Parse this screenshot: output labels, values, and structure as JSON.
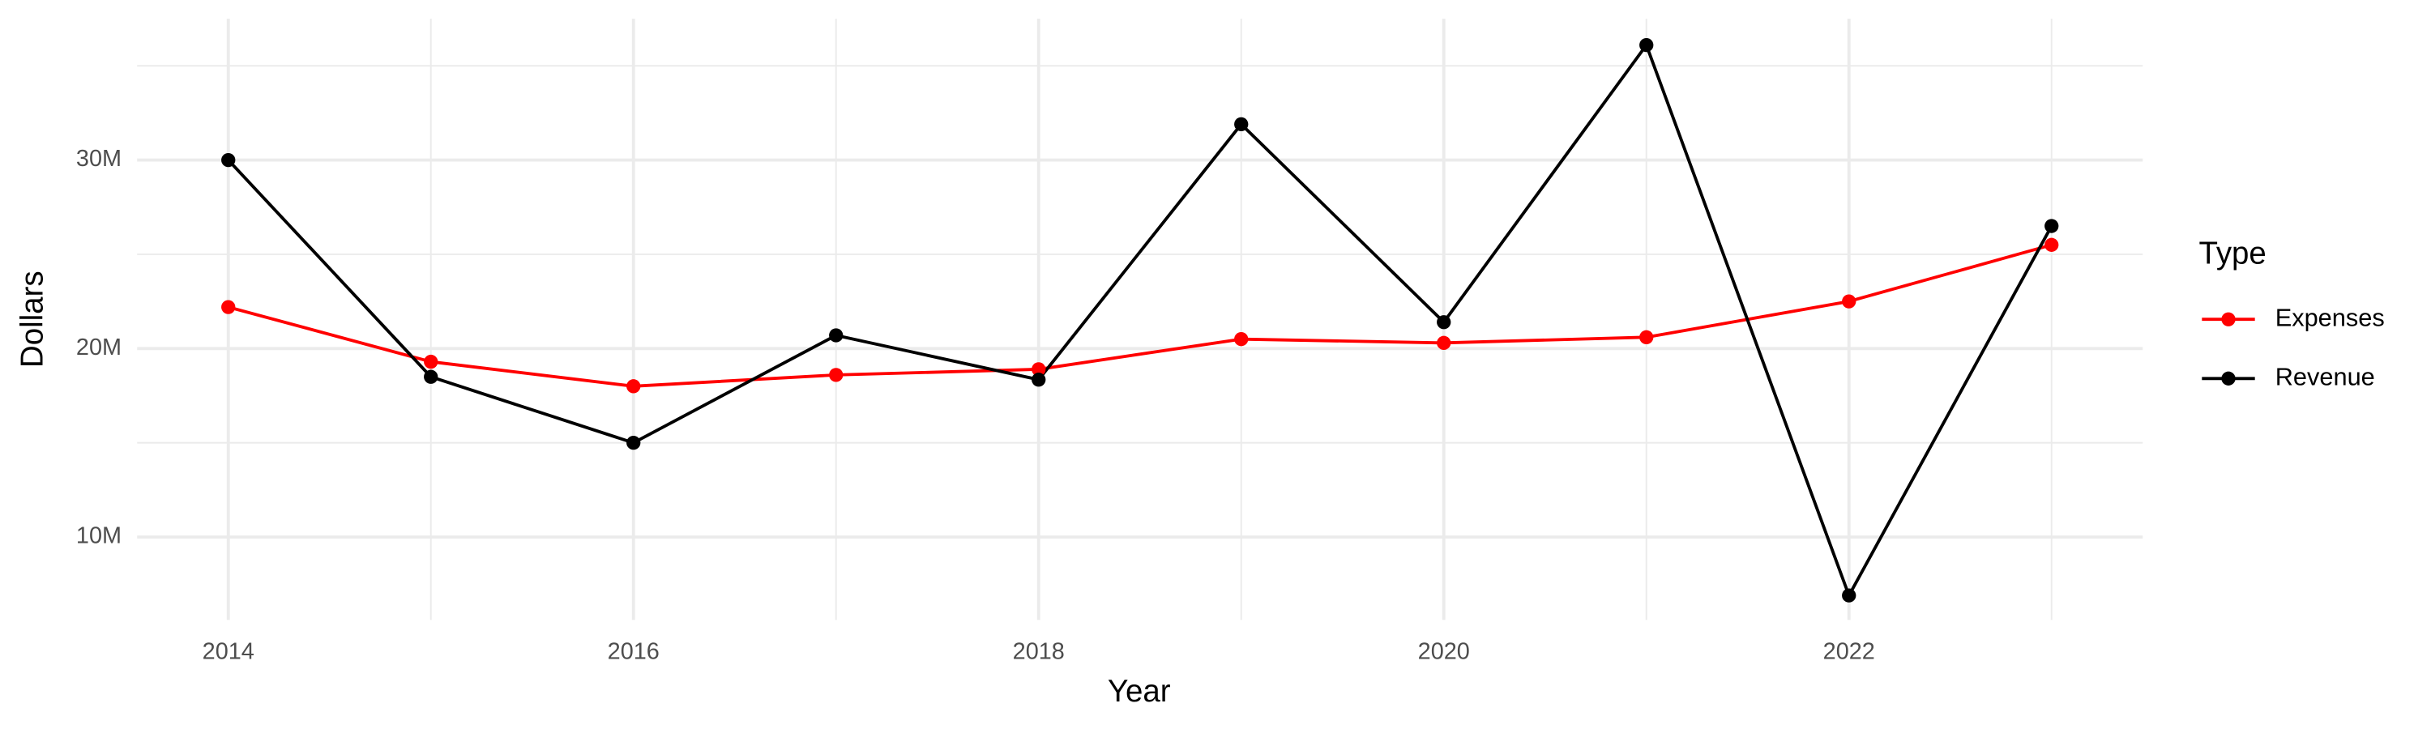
{
  "chart_data": {
    "type": "line",
    "x_label": "Year",
    "y_label": "Dollars",
    "legend_title": "Type",
    "x": [
      2014,
      2015,
      2016,
      2017,
      2018,
      2019,
      2020,
      2021,
      2022,
      2023
    ],
    "series": [
      {
        "name": "Expenses",
        "color": "#ff0000",
        "values": [
          22200000,
          19300000,
          18000000,
          18600000,
          18900000,
          20500000,
          20300000,
          20600000,
          22500000,
          25500000
        ]
      },
      {
        "name": "Revenue",
        "color": "#000000",
        "values": [
          30000000,
          18500000,
          15000000,
          20700000,
          18350000,
          31900000,
          21400000,
          36100000,
          6900000,
          26500000
        ]
      }
    ],
    "xlim": [
      2013.55,
      2023.45
    ],
    "xticks": [
      2014,
      2016,
      2018,
      2020,
      2022
    ],
    "ylim": [
      5600000,
      37500000
    ],
    "yticks": [
      {
        "value": 10000000,
        "label": "10M"
      },
      {
        "value": 20000000,
        "label": "20M"
      },
      {
        "value": 30000000,
        "label": "30M"
      }
    ],
    "grid": true,
    "legend_position": "right"
  }
}
